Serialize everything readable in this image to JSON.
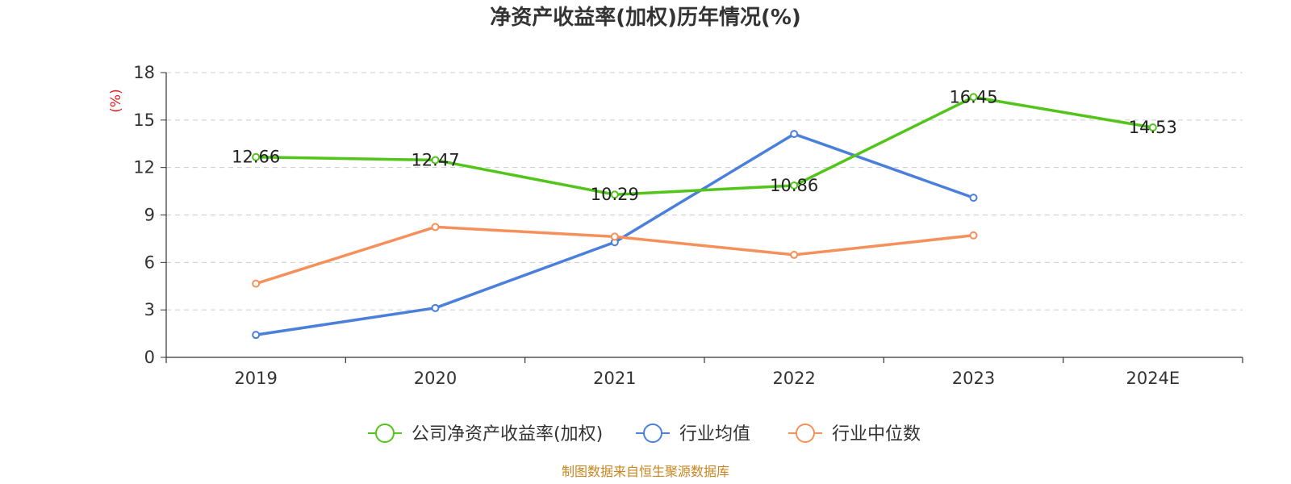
{
  "chart_data": {
    "type": "line",
    "title": "净资产收益率(加权)历年情况(%)",
    "ylabel": "(%)",
    "xlabel": "",
    "categories": [
      "2019",
      "2020",
      "2021",
      "2022",
      "2023",
      "2024E"
    ],
    "ylim": [
      0,
      18
    ],
    "yticks": [
      0,
      3,
      6,
      9,
      12,
      15,
      18
    ],
    "grid": true,
    "legend_position": "bottom",
    "series": [
      {
        "name": "公司净资产收益率(加权)",
        "color": "#52c41a",
        "values": [
          12.66,
          12.47,
          10.29,
          10.86,
          16.45,
          14.53
        ],
        "show_labels": true
      },
      {
        "name": "行业均值",
        "color": "#4a7fdb",
        "values": [
          1.42,
          3.12,
          7.28,
          14.12,
          10.09,
          null
        ],
        "show_labels": false
      },
      {
        "name": "行业中位数",
        "color": "#f5905a",
        "values": [
          4.66,
          8.24,
          7.63,
          6.48,
          7.71,
          null
        ],
        "show_labels": false
      }
    ]
  },
  "footer": "制图数据来自恒生聚源数据库"
}
